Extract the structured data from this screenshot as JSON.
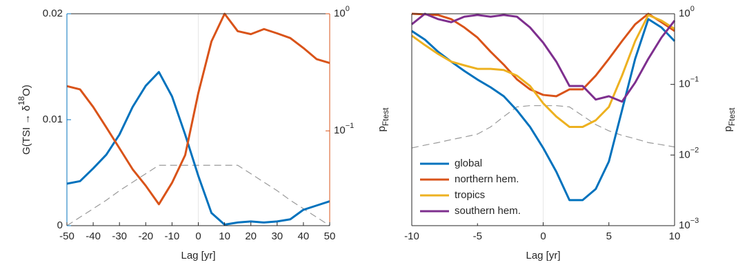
{
  "chart_data": [
    {
      "type": "line",
      "x": [
        -50,
        -45,
        -40,
        -35,
        -30,
        -25,
        -20,
        -15,
        -10,
        -5,
        0,
        5,
        10,
        15,
        20,
        25,
        30,
        35,
        40,
        45,
        50
      ],
      "xlim": [
        -50,
        50
      ],
      "xticks": [
        -50,
        -40,
        -30,
        -20,
        -10,
        0,
        10,
        20,
        30,
        40,
        50
      ],
      "x_label": "Lag [yr]",
      "ylim": [
        0,
        0.02
      ],
      "yticks": [
        0,
        0.01,
        0.02
      ],
      "y_color": "#0072bd",
      "y_label_parts": [
        "G(TSI → δ",
        "18",
        "O)"
      ],
      "y2lim": [
        0.0155,
        1
      ],
      "y2scale": "log",
      "y2_color": "#d95319",
      "y2ticks": [
        {
          "value": 0.1,
          "label": "10",
          "exp": "−1"
        },
        {
          "value": 1,
          "label": "10",
          "exp": "0"
        }
      ],
      "y2_label_parts": [
        "p",
        "Ftest"
      ],
      "series": [
        {
          "color": "#999999",
          "style": "dashed",
          "values": [
            0,
            0.0008,
            0.0016,
            0.0024,
            0.0033,
            0.0041,
            0.0049,
            0.0057,
            0.0057,
            0.0057,
            0.0057,
            0.0057,
            0.0057,
            0.0057,
            0.0049,
            0.0041,
            0.0033,
            0.0024,
            0.0016,
            0.0008,
            0
          ]
        },
        {
          "color": "#0072bd",
          "values": [
            0.00396,
            0.0042,
            0.0054,
            0.0067,
            0.0086,
            0.0112,
            0.0132,
            0.0145,
            0.0122,
            0.0086,
            0.0047,
            0.0012,
            0.0001,
            0.0003,
            0.0004,
            0.0003,
            0.0004,
            0.0006,
            0.0015,
            0.0019,
            0.0023
          ]
        },
        {
          "color": "#d95319",
          "axis": "y2",
          "values": [
            0.241,
            0.226,
            0.16,
            0.107,
            0.071,
            0.047,
            0.034,
            0.0236,
            0.036,
            0.062,
            0.21,
            0.58,
            1.0,
            0.71,
            0.67,
            0.74,
            0.68,
            0.62,
            0.51,
            0.41,
            0.38
          ]
        }
      ]
    },
    {
      "type": "line",
      "x": [
        -10,
        -9,
        -8,
        -7,
        -6,
        -5,
        -4,
        -3,
        -2,
        -1,
        0,
        1,
        2,
        3,
        4,
        5,
        6,
        7,
        8,
        9,
        10
      ],
      "xlim": [
        -10,
        10
      ],
      "xticks": [
        -10,
        -5,
        0,
        5,
        10
      ],
      "x_label": "Lag [yr]",
      "ylim": [
        0.001,
        1
      ],
      "yscale": "log",
      "y_side": "right",
      "yticks": [
        {
          "value": 0.001,
          "label": "10",
          "exp": "−3"
        },
        {
          "value": 0.01,
          "label": "10",
          "exp": "−2"
        },
        {
          "value": 0.1,
          "label": "10",
          "exp": "−1"
        },
        {
          "value": 1,
          "label": "10",
          "exp": "0"
        }
      ],
      "y_label_parts": [
        "p",
        "Ftest"
      ],
      "legend": "lower left",
      "series": [
        {
          "color": "#999999",
          "style": "dashed",
          "values": [
            0.0126,
            0.0138,
            0.015,
            0.0165,
            0.018,
            0.0198,
            0.025,
            0.035,
            0.048,
            0.05,
            0.05,
            0.05,
            0.048,
            0.036,
            0.027,
            0.022,
            0.019,
            0.017,
            0.015,
            0.014,
            0.013
          ]
        },
        {
          "name": "global",
          "color": "#0072bd",
          "values": [
            0.57,
            0.43,
            0.29,
            0.21,
            0.155,
            0.117,
            0.091,
            0.068,
            0.043,
            0.025,
            0.0126,
            0.0058,
            0.0023,
            0.0023,
            0.0033,
            0.0081,
            0.043,
            0.23,
            0.84,
            0.64,
            0.41
          ]
        },
        {
          "name": "northern hem.",
          "color": "#d95319",
          "values": [
            1.0,
            0.98,
            0.96,
            0.84,
            0.64,
            0.46,
            0.29,
            0.19,
            0.118,
            0.085,
            0.071,
            0.068,
            0.085,
            0.085,
            0.133,
            0.23,
            0.41,
            0.71,
            1.0,
            0.76,
            0.57
          ]
        },
        {
          "name": "tropics",
          "color": "#edb120",
          "values": [
            0.49,
            0.36,
            0.27,
            0.21,
            0.186,
            0.166,
            0.166,
            0.16,
            0.133,
            0.095,
            0.054,
            0.035,
            0.025,
            0.025,
            0.031,
            0.048,
            0.133,
            0.41,
            0.96,
            0.8,
            0.61
          ]
        },
        {
          "name": "southern hem.",
          "color": "#7e2f8e",
          "values": [
            0.71,
            1.0,
            0.84,
            0.76,
            0.91,
            0.96,
            0.91,
            0.96,
            0.91,
            0.64,
            0.39,
            0.21,
            0.095,
            0.095,
            0.061,
            0.068,
            0.057,
            0.106,
            0.23,
            0.46,
            0.8
          ]
        }
      ]
    }
  ]
}
